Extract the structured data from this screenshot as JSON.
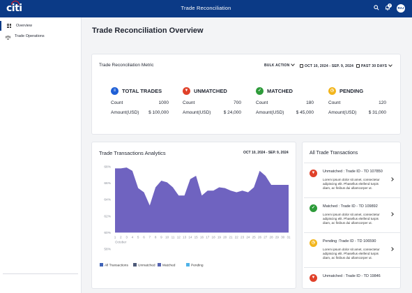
{
  "header": {
    "logo": "citi",
    "title": "Trade  Reconciliation",
    "notification_count": "2",
    "user_initials": "RAJ"
  },
  "sidebar": {
    "items": [
      {
        "label": "Overview",
        "active": true
      },
      {
        "label": "Trade Operations",
        "active": false
      }
    ]
  },
  "page_title": "Trade Reconciliation Overview",
  "metric_card": {
    "title": "Trade Reconciliation Metric",
    "bulk_action": "BULK ACTION",
    "date_range": "OCT 10, 2024 - SEP. 9, 2024",
    "period": "PAST 30 DAYS",
    "count_label": "Count",
    "amount_label": "Amount(USD)",
    "metrics": [
      {
        "name": "TOTAL TRADES",
        "count": "1000",
        "amount": "$ 100,000",
        "color": "#1f5fd6",
        "icon": "list-icon"
      },
      {
        "name": "UNMATCHED",
        "count": "700",
        "amount": "$ 24,000",
        "color": "#e0412a",
        "icon": "thumbs-down-icon"
      },
      {
        "name": "MATCHED",
        "count": "180",
        "amount": "$ 45,000",
        "color": "#2e9b3a",
        "icon": "check-icon"
      },
      {
        "name": "PENDING",
        "count": "120",
        "amount": "$ 31,000",
        "color": "#f2b51c",
        "icon": "clock-icon"
      }
    ]
  },
  "analytics": {
    "title": "Trade Transactions Analytics",
    "date_range": "OCT 10, 2024 - SEP. 9, 2024"
  },
  "chart_data": {
    "type": "area",
    "x": [
      1,
      2,
      3,
      4,
      5,
      6,
      7,
      8,
      9,
      10,
      11,
      12,
      13,
      14,
      15,
      16,
      17,
      18,
      19,
      20,
      21,
      22,
      23,
      24,
      25,
      26,
      27,
      28,
      29,
      30,
      31
    ],
    "xlabel": "October",
    "y_ticks": [
      "68%",
      "66%",
      "64%",
      "62%",
      "60%",
      "58%"
    ],
    "ylim": [
      58,
      68
    ],
    "grid": false,
    "series": [
      {
        "name": "All Transactions",
        "color": "#6f63c0",
        "values": [
          67.8,
          67.8,
          67.9,
          67.5,
          65.4,
          64.9,
          63.3,
          65.5,
          66.3,
          66.1,
          65.5,
          64.5,
          64.5,
          66.5,
          66.9,
          64.5,
          65.1,
          65.1,
          65.5,
          65.4,
          65.1,
          64.9,
          65.1,
          64.9,
          65.5,
          67.5,
          66.9,
          65.8,
          65.8,
          65.8,
          65.8
        ]
      }
    ],
    "legend": [
      {
        "name": "All Transactions",
        "color": "#3f63b8"
      },
      {
        "name": "Unmatched",
        "color": "#4d5a78"
      },
      {
        "name": "Matched",
        "color": "#5563b0"
      },
      {
        "name": "Pending",
        "color": "#4fb3e8"
      }
    ],
    "legend_position": "bottom-left"
  },
  "trades": {
    "title": "All Trade Transactions",
    "items": [
      {
        "status": "Unmatched : Trade ID - TD 107850",
        "body": "Lorem ipsum dolor sit amet, consectetur adipiscing elit. Phasellus eleifend turpis diam, ac finibus dui ullamcorper ut.",
        "color": "#e0412a",
        "icon": "thumbs-down-icon"
      },
      {
        "status": "Matched : Trade ID - TD 109892",
        "body": "Lorem ipsum dolor sit amet, consectetur adipiscing elit. Phasellus eleifend turpis diam, ac finibus dui ullamcorper ut.",
        "color": "#2e9b3a",
        "icon": "check-icon"
      },
      {
        "status": "Pending :Trade ID - TD 106590",
        "body": "Lorem ipsum dolor sit amet, consectetur adipiscing elit. Phasellus eleifend turpis diam, ac finibus dui ullamcorper ut.",
        "color": "#f2b51c",
        "icon": "clock-icon"
      },
      {
        "status": "Unmatched : Trade ID - TD 19846",
        "body": "",
        "color": "#e0412a",
        "icon": "thumbs-down-icon"
      }
    ]
  }
}
